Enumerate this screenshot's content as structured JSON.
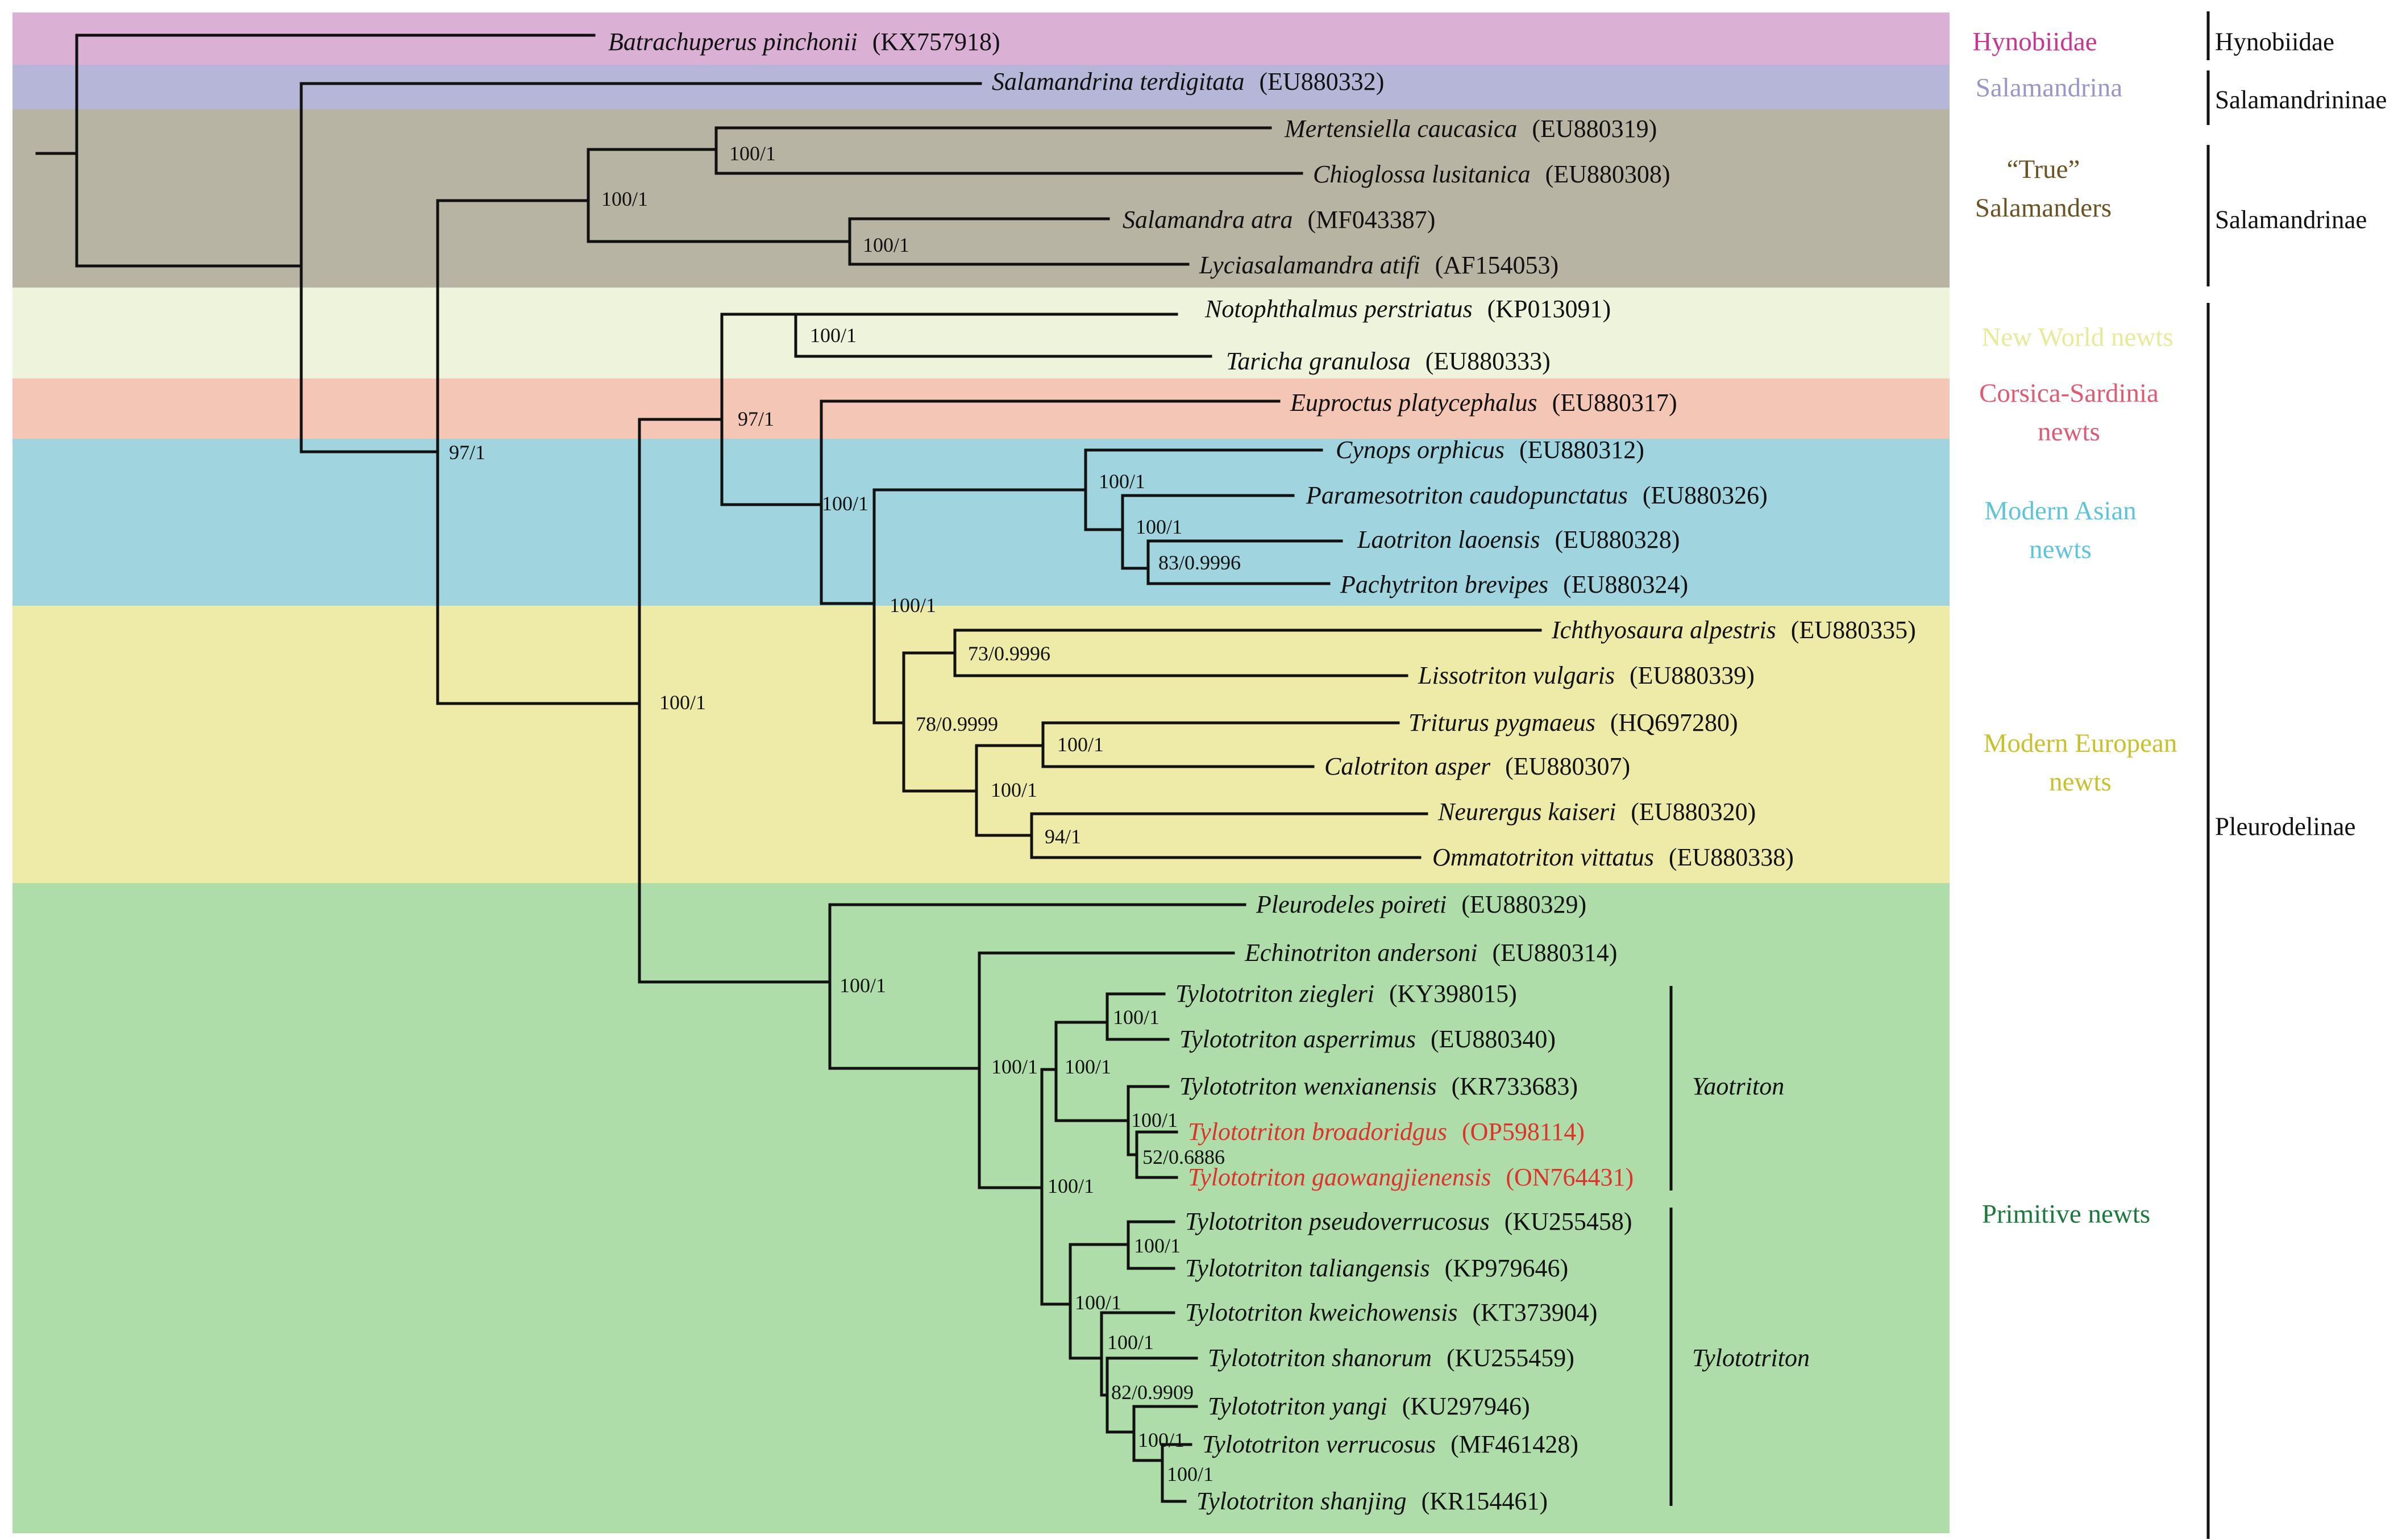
{
  "colors": {
    "band_hynobiidae": "#dbb0d5",
    "band_salamandrina": "#b6b7d8",
    "band_true_salamanders": "#b8b4a4",
    "band_new_world": "#eef4dc",
    "band_corsica": "#f4c6b6",
    "band_asian": "#a0d4de",
    "band_european": "#eeeaa7",
    "band_primitive": "#aedda9",
    "branch": "#111111",
    "highlight": "#e0312b"
  },
  "groups": {
    "hynobiidae": {
      "label": "Hynobiidae",
      "color": "#c9368f"
    },
    "salamandrina": {
      "label": "Salamandrina",
      "color": "#9a96cc"
    },
    "true_salamanders": {
      "line1": "“True”",
      "line2": "Salamanders",
      "color": "#6a5424"
    },
    "new_world": {
      "label": "New World newts",
      "color": "#e6eb9a"
    },
    "corsica": {
      "line1": "Corsica-Sardinia",
      "line2": "newts",
      "color": "#e05a73"
    },
    "asian": {
      "line1": "Modern Asian",
      "line2": "newts",
      "color": "#5ec4dc"
    },
    "european": {
      "line1": "Modern European",
      "line2": "newts",
      "color": "#c9c12c"
    },
    "primitive": {
      "label": "Primitive newts",
      "color": "#1c7a3c"
    }
  },
  "clades": {
    "hynobiidae": "Hynobiidae",
    "salamandrininae": "Salamandrininae",
    "salamandrinae": "Salamandrinae",
    "pleurodelinae": "Pleurodelinae"
  },
  "genera": {
    "yaotriton": "Yaotriton",
    "tylototriton": "Tylototriton"
  },
  "taxa": [
    {
      "species": "Batrachuperus pinchonii",
      "accession": "(KX757918)"
    },
    {
      "species": "Salamandrina terdigitata",
      "accession": "(EU880332)"
    },
    {
      "species": "Mertensiella caucasica",
      "accession": "(EU880319)"
    },
    {
      "species": "Chioglossa lusitanica",
      "accession": "(EU880308)"
    },
    {
      "species": "Salamandra atra",
      "accession": "(MF043387)"
    },
    {
      "species": "Lyciasalamandra atifi",
      "accession": "(AF154053)"
    },
    {
      "species": "Notophthalmus perstriatus",
      "accession": "(KP013091)"
    },
    {
      "species": "Taricha granulosa",
      "accession": "(EU880333)"
    },
    {
      "species": "Euproctus platycephalus",
      "accession": "(EU880317)"
    },
    {
      "species": "Cynops orphicus",
      "accession": "(EU880312)"
    },
    {
      "species": "Paramesotriton caudopunctatus",
      "accession": "(EU880326)"
    },
    {
      "species": "Laotriton laoensis",
      "accession": "(EU880328)"
    },
    {
      "species": "Pachytriton brevipes",
      "accession": "(EU880324)"
    },
    {
      "species": "Ichthyosaura alpestris",
      "accession": "(EU880335)"
    },
    {
      "species": "Lissotriton vulgaris",
      "accession": "(EU880339)"
    },
    {
      "species": "Triturus pygmaeus",
      "accession": "(HQ697280)"
    },
    {
      "species": "Calotriton asper",
      "accession": "(EU880307)"
    },
    {
      "species": "Neurergus kaiseri",
      "accession": "(EU880320)"
    },
    {
      "species": "Ommatotriton vittatus",
      "accession": "(EU880338)"
    },
    {
      "species": "Pleurodeles poireti",
      "accession": "(EU880329)"
    },
    {
      "species": "Echinotriton andersoni",
      "accession": "(EU880314)"
    },
    {
      "species": "Tylototriton ziegleri",
      "accession": "(KY398015)"
    },
    {
      "species": "Tylototriton asperrimus",
      "accession": "(EU880340)"
    },
    {
      "species": "Tylototriton wenxianensis",
      "accession": "(KR733683)"
    },
    {
      "species": "Tylototriton broadoridgus",
      "accession": "(OP598114)"
    },
    {
      "species": "Tylototriton gaowangjienensis",
      "accession": "(ON764431)"
    },
    {
      "species": "Tylototriton pseudoverrucosus",
      "accession": "(KU255458)"
    },
    {
      "species": "Tylototriton taliangensis",
      "accession": "(KP979646)"
    },
    {
      "species": "Tylototriton kweichowensis",
      "accession": "(KT373904)"
    },
    {
      "species": "Tylototriton shanorum",
      "accession": "(KU255459)"
    },
    {
      "species": "Tylototriton yangi",
      "accession": "(KU297946)"
    },
    {
      "species": "Tylototriton verrucosus",
      "accession": "(MF461428)"
    },
    {
      "species": "Tylototriton shanjing",
      "accession": "(KR154461)"
    }
  ],
  "support": {
    "mert_chio": "100/1",
    "true_sal": "100/1",
    "sal_lyc": "100/1",
    "pleuro_sal": "97/1",
    "noto_tar": "100/1",
    "modern": "97/1",
    "eur_asian": "100/1",
    "cyn_group": "100/1",
    "lao_pach_par": "100/1",
    "lao_pach": "83/0.9996",
    "eur_asian_top": "100/1",
    "ich_lis": "73/0.9996",
    "european": "78/0.9999",
    "tri_cal": "100/1",
    "tri_neu": "100/1",
    "neu_omm": "94/1",
    "pleurodelinae": "100/1",
    "primitive": "100/1",
    "ech_tyl": "100/1",
    "zieg_asp": "100/1",
    "yaotriton": "100/1",
    "wen_group": "100/1",
    "broad_gao": "52/0.6886",
    "tylototriton_all": "100/1",
    "pseudo_tal": "100/1",
    "tylototriton": "100/1",
    "kwe_group": "100/1",
    "shan_group": "82/0.9909",
    "yang_group": "100/1",
    "ver_shj": "100/1"
  }
}
